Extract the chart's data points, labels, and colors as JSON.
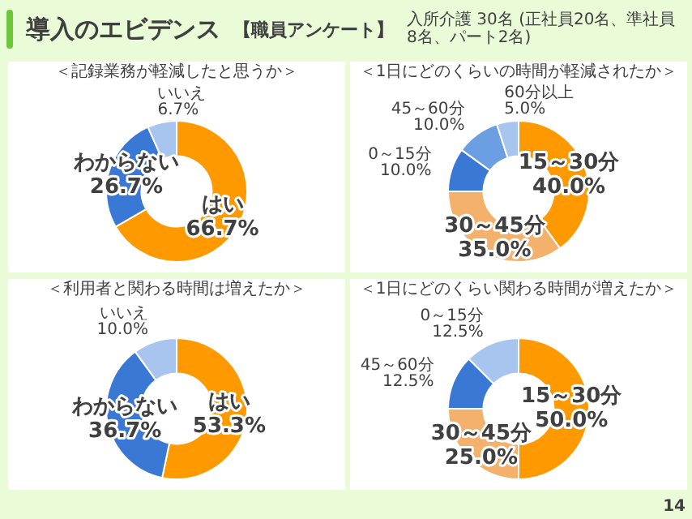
{
  "chart_data": [
    {
      "type": "donut",
      "title": "＜記録業務が軽減したと思うか＞",
      "categories": [
        "はい",
        "わからない",
        "いいえ"
      ],
      "values": [
        66.7,
        26.7,
        6.7
      ],
      "colors": [
        "#ff9900",
        "#3a78d6",
        "#a8c5f0"
      ],
      "value_labels": [
        "66.7%",
        "26.7%",
        "6.7%"
      ],
      "annotations": [
        "導入のエビデンス",
        "【職員アンケート】",
        "入所介護 30名 (正社員20名、準社員8名、パート2名)"
      ]
    },
    {
      "type": "donut",
      "title": "＜1日にどのくらいの時間が軽減されたか＞",
      "categories": [
        "15～30分",
        "30～45分",
        "0～15分",
        "45～60分",
        "60分以上"
      ],
      "values": [
        40,
        35,
        10,
        10,
        5
      ],
      "colors": [
        "#ff9900",
        "#f4b16b",
        "#3a78d6",
        "#6b9ee3",
        "#a8c5f0"
      ],
      "value_labels": [
        "40.0%",
        "35.0%",
        "10.0%",
        "10.0%",
        "5.0%"
      ]
    },
    {
      "type": "donut",
      "title": "＜利用者と関わる時間は増えたか＞",
      "categories": [
        "はい",
        "わからない",
        "いいえ"
      ],
      "values": [
        53.3,
        36.7,
        10
      ],
      "colors": [
        "#ff9900",
        "#3a78d6",
        "#a8c5f0"
      ],
      "value_labels": [
        "53.3%",
        "36.7%",
        "10.0%"
      ]
    },
    {
      "type": "donut",
      "title": "＜1日にどのくらい関わる時間が増えたか＞",
      "categories": [
        "15～30分",
        "30～45分",
        "45～60分",
        "0～15分"
      ],
      "values": [
        50,
        25,
        12.5,
        12.5
      ],
      "colors": [
        "#ff9900",
        "#f4b16b",
        "#3a78d6",
        "#a8c5f0"
      ],
      "value_labels": [
        "50.0%",
        "25.0%",
        "12.5%",
        "12.5%"
      ],
      "annotations": [
        "14"
      ]
    }
  ]
}
